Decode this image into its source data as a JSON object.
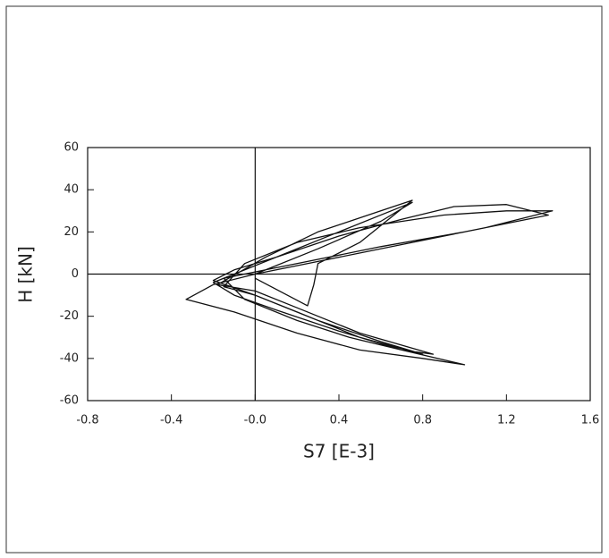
{
  "chart_data": {
    "type": "line",
    "xlabel": "S7  [E-3]",
    "ylabel": "H  [kN]",
    "x": [
      0,
      0.3,
      0.6,
      0.75,
      0.4,
      0.1,
      -0.1,
      -0.2,
      0.0,
      0.3,
      0.6,
      0.8,
      0.5,
      0.2,
      0.0,
      -0.15,
      -0.05,
      0.2,
      0.5,
      0.9,
      1.2,
      1.42,
      1.1,
      0.7,
      0.3,
      0.0,
      -0.2,
      -0.33,
      -0.1,
      0.2,
      0.5,
      0.8,
      1.0,
      0.7,
      0.4,
      0.1,
      -0.1,
      -0.2,
      0.1,
      0.4,
      0.7,
      0.95,
      1.2,
      1.4,
      1.0,
      0.6,
      0.25,
      0.05,
      -0.15,
      -0.05,
      0.2,
      0.45,
      0.7,
      0.85,
      0.5,
      0.2,
      0.0,
      -0.18,
      0.05,
      0.3,
      0.6,
      0.75,
      0.5,
      0.3,
      0.28,
      0.25,
      0.0
    ],
    "values": [
      0,
      12,
      25,
      34,
      20,
      8,
      2,
      -3,
      -10,
      -22,
      -32,
      -38,
      -30,
      -18,
      -10,
      -6,
      5,
      15,
      22,
      28,
      30,
      30,
      22,
      14,
      6,
      0,
      -5,
      -12,
      -18,
      -28,
      -36,
      -40,
      -43,
      -36,
      -27,
      -17,
      -10,
      -4,
      8,
      18,
      26,
      32,
      33,
      28,
      20,
      13,
      6,
      2,
      -2,
      -12,
      -22,
      -30,
      -36,
      -38,
      -28,
      -16,
      -8,
      -5,
      8,
      20,
      30,
      35,
      15,
      5,
      -5,
      -15,
      -2
    ],
    "color": "#111111",
    "xlim": [
      -0.8,
      1.6
    ],
    "xticks": [
      {
        "value": -0.8,
        "label": "-0.8"
      },
      {
        "value": -0.4,
        "label": "-0.4"
      },
      {
        "value": 0,
        "label": "-0.0"
      },
      0.4,
      0.8,
      1.2,
      1.6
    ],
    "ylim": [
      -60,
      60
    ],
    "yticks": [
      60,
      40,
      20,
      0,
      -20,
      -40,
      -60
    ]
  }
}
